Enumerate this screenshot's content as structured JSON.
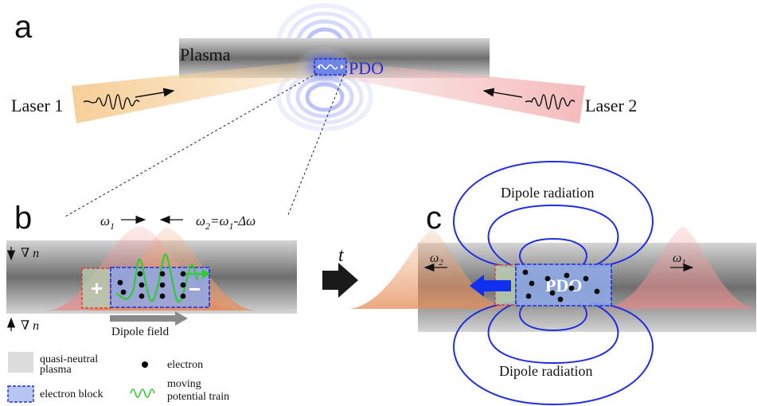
{
  "panel_labels": {
    "a": "a",
    "b": "b",
    "c": "c"
  },
  "panel_a": {
    "plasma_label": "Plasma",
    "pdo_label": "PDO",
    "laser1_label": "Laser 1",
    "laser2_label": "Laser 2"
  },
  "panel_b": {
    "omega1_base": "ω",
    "omega1_sub": "1",
    "omega2_base": "ω",
    "omega2_sub": "2",
    "omega2_rhs_a": "=ω",
    "omega2_rhs_sub": "1",
    "omega2_rhs_b": "-Δω",
    "grad_label": "∇",
    "grad_var": "n",
    "plus_sign": "+",
    "minus_sign": "−",
    "dipole_field_label": "Dipole field"
  },
  "legend": {
    "quasi_neutral_line1": "quasi-neutral",
    "quasi_neutral_line2": "plasma",
    "electron_label": "electron",
    "electron_block_label": "electron block",
    "moving_line1": "moving",
    "moving_line2": "potential train"
  },
  "time_arrow_label": "t",
  "panel_c": {
    "top_label": "Dipole radiation",
    "bottom_label": "Dipole radiation",
    "pdo_label": "PDO",
    "omega2_base": "ω",
    "omega2_sub": "2",
    "omega1_base": "ω",
    "omega1_sub": "1"
  },
  "colors": {
    "laser1": "#f3c48a",
    "laser2": "#f2b3b3",
    "plasma_dark": "#7a7a7a",
    "pdo_blue": "#1f2ee0",
    "block_fill": "#8fa8e6",
    "green_train": "#2ecc2e",
    "red_dashed": "#e03a3a"
  }
}
